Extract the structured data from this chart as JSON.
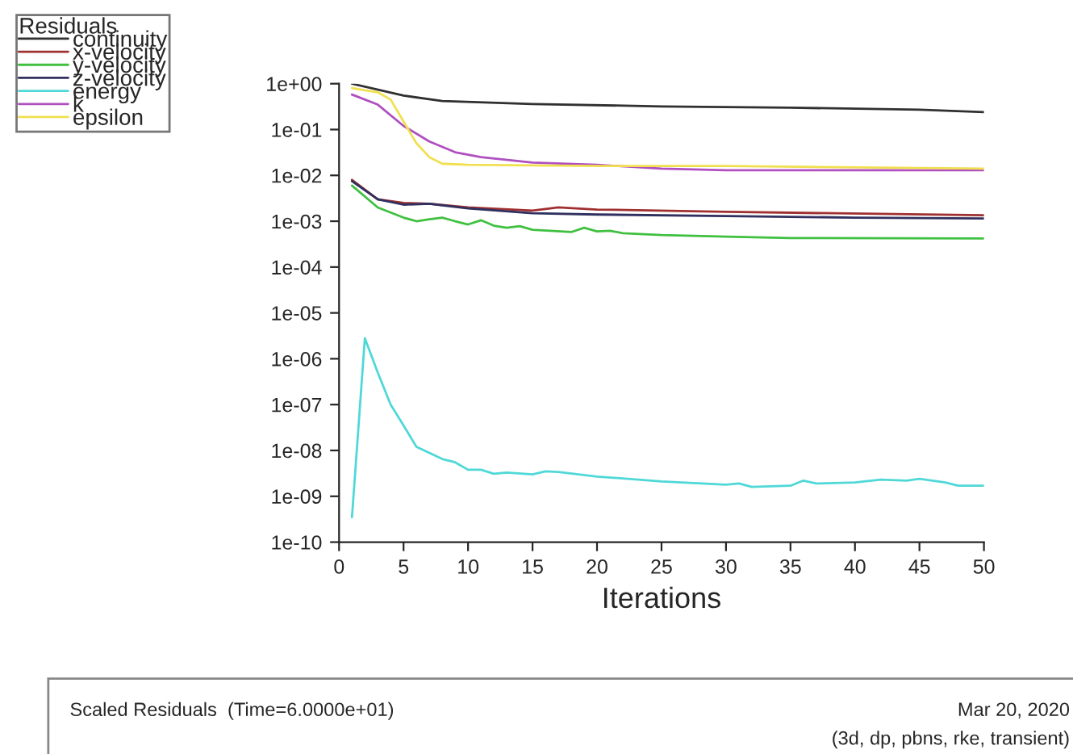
{
  "chart_data": {
    "type": "line",
    "xlabel": "Iterations",
    "legend_title": "Residuals",
    "legend": "top left",
    "log": "y",
    "grid": false,
    "xlim": [
      0,
      50
    ],
    "xticks": [
      0,
      5,
      10,
      15,
      20,
      25,
      30,
      35,
      40,
      45,
      50
    ],
    "ylim": [
      1e-10,
      1
    ],
    "yticks": [
      {
        "value": 1e-10,
        "label": "1e-10"
      },
      {
        "value": 1e-09,
        "label": "1e-09"
      },
      {
        "value": 1e-08,
        "label": "1e-08"
      },
      {
        "value": 1e-07,
        "label": "1e-07"
      },
      {
        "value": 1e-06,
        "label": "1e-06"
      },
      {
        "value": 1e-05,
        "label": "1e-05"
      },
      {
        "value": 0.0001,
        "label": "1e-04"
      },
      {
        "value": 0.001,
        "label": "1e-03"
      },
      {
        "value": 0.01,
        "label": "1e-02"
      },
      {
        "value": 0.1,
        "label": "1e-01"
      },
      {
        "value": 1,
        "label": "1e+00"
      }
    ],
    "series": [
      {
        "name": "continuity",
        "color": "#303030",
        "x": [
          1,
          5,
          8,
          15,
          25,
          35,
          45,
          50
        ],
        "values": [
          1.0,
          0.55,
          0.42,
          0.36,
          0.32,
          0.3,
          0.27,
          0.24
        ]
      },
      {
        "name": "x-velocity",
        "color": "#a03030",
        "x": [
          1,
          3,
          5,
          7,
          10,
          15,
          17,
          20,
          30,
          50
        ],
        "values": [
          0.008,
          0.003,
          0.0025,
          0.0024,
          0.002,
          0.0017,
          0.002,
          0.0018,
          0.0016,
          0.00135
        ]
      },
      {
        "name": "y-velocity",
        "color": "#40c040",
        "x": [
          1,
          3,
          5,
          6,
          7,
          8,
          9,
          10,
          11,
          12,
          13,
          14,
          15,
          18,
          19,
          20,
          21,
          22,
          25,
          30,
          35,
          50
        ],
        "values": [
          0.006,
          0.002,
          0.0012,
          0.001,
          0.0011,
          0.0012,
          0.001,
          0.00085,
          0.00105,
          0.0008,
          0.00072,
          0.00078,
          0.00065,
          0.00058,
          0.00072,
          0.0006,
          0.00062,
          0.00055,
          0.0005,
          0.00046,
          0.00043,
          0.00042
        ]
      },
      {
        "name": "z-velocity",
        "color": "#303060",
        "x": [
          1,
          3,
          5,
          7,
          10,
          15,
          20,
          30,
          40,
          50
        ],
        "values": [
          0.0075,
          0.003,
          0.0023,
          0.0024,
          0.0019,
          0.0015,
          0.0014,
          0.0013,
          0.0012,
          0.00115
        ]
      },
      {
        "name": "energy",
        "color": "#50d8d8",
        "x": [
          1,
          2,
          3,
          4,
          5,
          6,
          8,
          9,
          10,
          11,
          12,
          13,
          15,
          16,
          17,
          20,
          25,
          30,
          31,
          32,
          35,
          36,
          37,
          40,
          42,
          44,
          45,
          47,
          48,
          50
        ],
        "values": [
          3.5e-10,
          2.8e-06,
          5e-07,
          1e-07,
          3.5e-08,
          1.2e-08,
          6.5e-09,
          5.5e-09,
          3.8e-09,
          3.8e-09,
          3.1e-09,
          3.3e-09,
          3e-09,
          3.5e-09,
          3.4e-09,
          2.7e-09,
          2.1e-09,
          1.8e-09,
          1.9e-09,
          1.6e-09,
          1.7e-09,
          2.2e-09,
          1.9e-09,
          2e-09,
          2.3e-09,
          2.2e-09,
          2.4e-09,
          2e-09,
          1.7e-09,
          1.7e-09
        ]
      },
      {
        "name": "k",
        "color": "#b050c0",
        "x": [
          1,
          3,
          5,
          7,
          9,
          11,
          15,
          20,
          25,
          30,
          50
        ],
        "values": [
          0.58,
          0.35,
          0.12,
          0.055,
          0.032,
          0.025,
          0.019,
          0.017,
          0.014,
          0.013,
          0.013
        ]
      },
      {
        "name": "epsilon",
        "color": "#f0e050",
        "x": [
          1,
          3,
          4,
          5,
          6,
          7,
          8,
          10,
          20,
          30,
          50
        ],
        "values": [
          0.8,
          0.65,
          0.45,
          0.15,
          0.05,
          0.025,
          0.018,
          0.017,
          0.016,
          0.016,
          0.014
        ]
      }
    ],
    "annotations": [
      "Scaled Residuals  (Time=6.0000e+01)",
      "Mar 20, 2020",
      "(3d, dp, pbns, rke, transient)"
    ]
  }
}
